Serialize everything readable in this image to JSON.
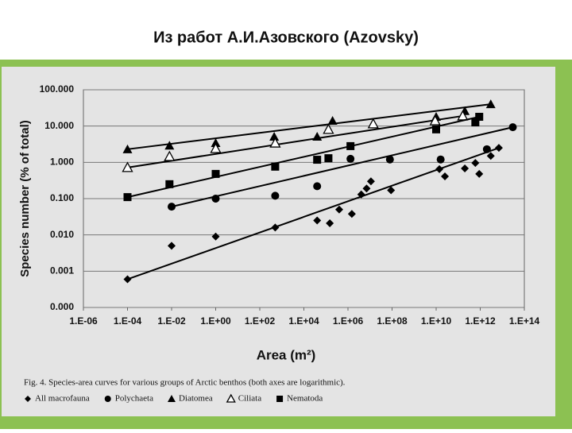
{
  "chart_data": {
    "type": "scatter",
    "title": "Из работ А.И.Азовского (Azovsky)",
    "x_label": "Area (m²)",
    "y_label": "Species number (% of total)",
    "caption": "Fig. 4. Species-area curves for various groups of Arctic benthos (both axes are logarithmic).",
    "xscale": "log",
    "yscale": "log",
    "grid": "y",
    "xlim": [
      1e-06,
      100000000000000.0
    ],
    "ylim": [
      0.0001,
      100
    ],
    "xticks": [
      {
        "value": 1e-06,
        "label": "1.E-06"
      },
      {
        "value": 0.0001,
        "label": "1.E-04"
      },
      {
        "value": 0.01,
        "label": "1.E-02"
      },
      {
        "value": 1,
        "label": "1.E+00"
      },
      {
        "value": 100.0,
        "label": "1.E+02"
      },
      {
        "value": 10000.0,
        "label": "1.E+04"
      },
      {
        "value": 1000000.0,
        "label": "1.E+06"
      },
      {
        "value": 100000000.0,
        "label": "1.E+08"
      },
      {
        "value": 10000000000.0,
        "label": "1.E+10"
      },
      {
        "value": 1000000000000.0,
        "label": "1.E+12"
      },
      {
        "value": 100000000000000.0,
        "label": "1.E+14"
      }
    ],
    "yticks": [
      {
        "value": 100,
        "label": "100.000"
      },
      {
        "value": 10,
        "label": "10.000"
      },
      {
        "value": 1,
        "label": "1.000"
      },
      {
        "value": 0.1,
        "label": "0.100"
      },
      {
        "value": 0.01,
        "label": "0.010"
      },
      {
        "value": 0.001,
        "label": "0.001"
      },
      {
        "value": 0.0001,
        "label": "0.000"
      }
    ],
    "series": [
      {
        "name": "All macrofauna",
        "marker": "diamond",
        "color": "#000000",
        "x": [
          0.0001,
          0.01,
          1,
          500,
          40000.0,
          150000.0,
          400000.0,
          1500000.0,
          4000000.0,
          7000000.0,
          11000000.0,
          90000000.0,
          14000000000.0,
          25000000000.0,
          200000000000.0,
          600000000000.0,
          900000000000.0,
          3000000000000.0,
          7000000000000.0
        ],
        "values": [
          0.0006,
          0.005,
          0.009,
          0.016,
          0.025,
          0.021,
          0.05,
          0.038,
          0.13,
          0.19,
          0.3,
          0.17,
          0.65,
          0.41,
          0.68,
          0.96,
          0.48,
          1.5,
          2.5
        ]
      },
      {
        "name": "Polychaeta",
        "marker": "circle",
        "color": "#000000",
        "x": [
          0.01,
          1,
          500,
          40000.0,
          1300000.0,
          80000000.0,
          16000000000.0,
          2000000000000.0,
          30000000000000.0
        ],
        "values": [
          0.06,
          0.1,
          0.12,
          0.22,
          1.25,
          1.2,
          1.2,
          2.3,
          9.3
        ]
      },
      {
        "name": "Diatomea",
        "marker": "triangle",
        "color": "#000000",
        "x": [
          0.0001,
          0.008,
          1,
          450,
          40000.0,
          200000.0,
          10000000000.0,
          200000000000.0,
          3000000000000.0
        ],
        "values": [
          2.3,
          2.9,
          3.4,
          5.1,
          5.1,
          14,
          18,
          26,
          40
        ]
      },
      {
        "name": "Ciliata",
        "marker": "triangle-open",
        "color": "#000000",
        "x": [
          0.0001,
          0.008,
          1,
          500,
          130000.0,
          14000000.0,
          9000000000.0,
          160000000000.0
        ],
        "values": [
          0.72,
          1.45,
          2.4,
          3.4,
          8.1,
          11.5,
          14,
          19
        ]
      },
      {
        "name": "Nematoda",
        "marker": "square",
        "color": "#000000",
        "x": [
          0.0001,
          0.008,
          1,
          500,
          40000.0,
          130000.0,
          1300000.0,
          10000000000.0,
          600000000000.0,
          900000000000.0
        ],
        "values": [
          0.11,
          0.25,
          0.48,
          0.76,
          1.18,
          1.3,
          2.8,
          8.1,
          12.6,
          18
        ]
      }
    ]
  }
}
